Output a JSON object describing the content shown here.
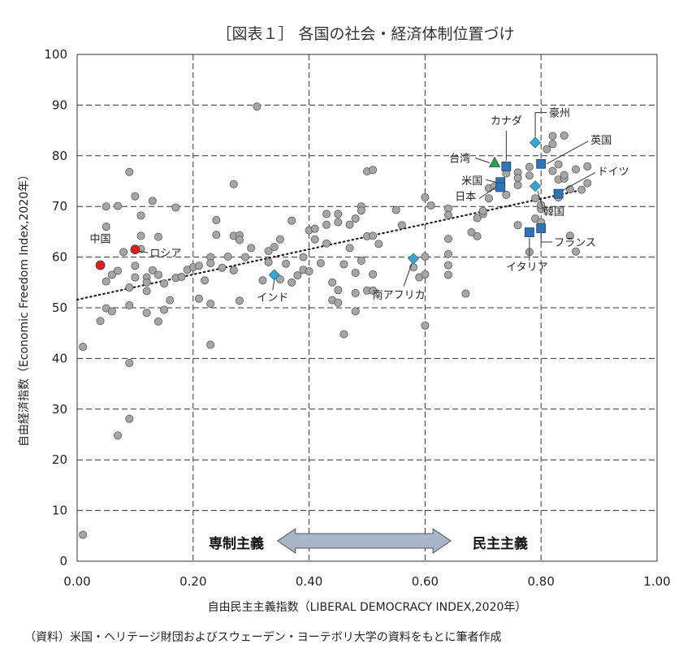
{
  "chart_data": {
    "type": "scatter",
    "title": "［図表１］ 各国の社会・経済体制位置づけ",
    "xlabel": "自由民主主義指数（LIBERAL DEMOCRACY INDEX,2020年）",
    "ylabel": "自由経済指数（Economic Freedom Index,2020年）",
    "xlim": [
      0,
      1
    ],
    "ylim": [
      0,
      100
    ],
    "xticks": [
      "0.00",
      "0.20",
      "0.40",
      "0.60",
      "0.80",
      "1.00"
    ],
    "yticks": [
      "0",
      "10",
      "20",
      "30",
      "40",
      "50",
      "60",
      "70",
      "80",
      "90",
      "100"
    ],
    "grid": true,
    "trendline": {
      "style": "dotted",
      "from": [
        0.0,
        51.6
      ],
      "to": [
        0.88,
        73.5
      ]
    },
    "regime_arrow": {
      "left": "専制主義",
      "right": "民主主義",
      "span": [
        0.34,
        0.65
      ],
      "y": 4
    },
    "source": "（資料）米国・ヘリテージ財団およびスウェーデン・ヨーテボリ大学の資料をもとに筆者作成",
    "colors": {
      "others": "#a6a6a6",
      "red": "#e11d1d",
      "blue": "#2e75b6",
      "teal": "#3aa6d0",
      "green": "#2e9a55"
    },
    "highlighted": [
      {
        "name": "中国",
        "x": 0.04,
        "y": 58.4,
        "marker": "circle",
        "color": "#e11d1d",
        "label": "中国"
      },
      {
        "name": "ロシア",
        "x": 0.1,
        "y": 61.5,
        "marker": "circle",
        "color": "#e11d1d",
        "label": "ロシア"
      },
      {
        "name": "インド",
        "x": 0.34,
        "y": 56.5,
        "marker": "diamond",
        "color": "#3aa6d0",
        "label": "インド"
      },
      {
        "name": "南アフリカ",
        "x": 0.58,
        "y": 59.7,
        "marker": "diamond",
        "color": "#3aa6d0",
        "label": "南アフリカ"
      },
      {
        "name": "台湾",
        "x": 0.72,
        "y": 78.6,
        "marker": "triangle",
        "color": "#2e9a55",
        "label": "台湾"
      },
      {
        "name": "カナダ",
        "x": 0.74,
        "y": 77.9,
        "marker": "square",
        "color": "#2e75b6",
        "label": "カナダ"
      },
      {
        "name": "米国",
        "x": 0.73,
        "y": 74.8,
        "marker": "square",
        "color": "#2e75b6",
        "label": "米国"
      },
      {
        "name": "日本",
        "x": 0.73,
        "y": 73.8,
        "marker": "square",
        "color": "#2e75b6",
        "label": "日本"
      },
      {
        "name": "豪州",
        "x": 0.79,
        "y": 82.6,
        "marker": "diamond",
        "color": "#3aa6d0",
        "label": "豪州"
      },
      {
        "name": "英国",
        "x": 0.8,
        "y": 78.4,
        "marker": "square",
        "color": "#2e75b6",
        "label": "英国"
      },
      {
        "name": "ドイツ",
        "x": 0.83,
        "y": 72.5,
        "marker": "square",
        "color": "#2e75b6",
        "label": "ドイツ"
      },
      {
        "name": "韓国",
        "x": 0.79,
        "y": 74.0,
        "marker": "diamond",
        "color": "#3aa6d0",
        "label": "韓国"
      },
      {
        "name": "フランス",
        "x": 0.8,
        "y": 65.7,
        "marker": "square",
        "color": "#2e75b6",
        "label": "フランス"
      },
      {
        "name": "イタリア",
        "x": 0.78,
        "y": 64.9,
        "marker": "square",
        "color": "#2e75b6",
        "label": "イタリア"
      }
    ],
    "others": [
      [
        0.01,
        42.3
      ],
      [
        0.01,
        5.2
      ],
      [
        0.04,
        47.4
      ],
      [
        0.05,
        70.0
      ],
      [
        0.05,
        66.0
      ],
      [
        0.05,
        55.2
      ],
      [
        0.05,
        49.9
      ],
      [
        0.06,
        56.5
      ],
      [
        0.06,
        49.3
      ],
      [
        0.07,
        70.1
      ],
      [
        0.07,
        57.3
      ],
      [
        0.07,
        24.8
      ],
      [
        0.08,
        61.0
      ],
      [
        0.09,
        76.8
      ],
      [
        0.09,
        54.0
      ],
      [
        0.09,
        50.5
      ],
      [
        0.09,
        39.1
      ],
      [
        0.09,
        28.1
      ],
      [
        0.1,
        72.0
      ],
      [
        0.1,
        58.3
      ],
      [
        0.1,
        56.0
      ],
      [
        0.11,
        68.2
      ],
      [
        0.11,
        64.2
      ],
      [
        0.11,
        61.6
      ],
      [
        0.12,
        56.0
      ],
      [
        0.12,
        55.0
      ],
      [
        0.12,
        53.3
      ],
      [
        0.12,
        49.0
      ],
      [
        0.13,
        71.1
      ],
      [
        0.13,
        57.4
      ],
      [
        0.14,
        64.0
      ],
      [
        0.14,
        56.5
      ],
      [
        0.14,
        47.3
      ],
      [
        0.15,
        54.8
      ],
      [
        0.15,
        49.6
      ],
      [
        0.16,
        51.5
      ],
      [
        0.17,
        69.8
      ],
      [
        0.17,
        55.9
      ],
      [
        0.18,
        56.1
      ],
      [
        0.19,
        57.5
      ],
      [
        0.2,
        58.0
      ],
      [
        0.21,
        58.3
      ],
      [
        0.21,
        51.8
      ],
      [
        0.22,
        55.4
      ],
      [
        0.23,
        60.0
      ],
      [
        0.23,
        58.8
      ],
      [
        0.23,
        50.8
      ],
      [
        0.23,
        42.7
      ],
      [
        0.24,
        67.3
      ],
      [
        0.24,
        64.4
      ],
      [
        0.25,
        57.9
      ],
      [
        0.26,
        60.1
      ],
      [
        0.27,
        74.4
      ],
      [
        0.27,
        64.2
      ],
      [
        0.27,
        57.4
      ],
      [
        0.28,
        64.3
      ],
      [
        0.28,
        63.4
      ],
      [
        0.28,
        51.4
      ],
      [
        0.29,
        60.0
      ],
      [
        0.3,
        61.8
      ],
      [
        0.31,
        89.7
      ],
      [
        0.32,
        55.4
      ],
      [
        0.33,
        61.2
      ],
      [
        0.33,
        59.0
      ],
      [
        0.34,
        62.0
      ],
      [
        0.35,
        63.5
      ],
      [
        0.35,
        55.6
      ],
      [
        0.36,
        58.7
      ],
      [
        0.37,
        67.2
      ],
      [
        0.37,
        55.0
      ],
      [
        0.38,
        56.4
      ],
      [
        0.39,
        60.0
      ],
      [
        0.39,
        57.5
      ],
      [
        0.4,
        65.3
      ],
      [
        0.4,
        57.2
      ],
      [
        0.41,
        65.6
      ],
      [
        0.41,
        63.5
      ],
      [
        0.42,
        58.8
      ],
      [
        0.43,
        68.5
      ],
      [
        0.43,
        66.4
      ],
      [
        0.43,
        62.7
      ],
      [
        0.44,
        55.0
      ],
      [
        0.44,
        51.5
      ],
      [
        0.45,
        68.5
      ],
      [
        0.45,
        66.9
      ],
      [
        0.45,
        53.5
      ],
      [
        0.45,
        51.0
      ],
      [
        0.46,
        58.6
      ],
      [
        0.46,
        44.8
      ],
      [
        0.47,
        66.4
      ],
      [
        0.47,
        61.8
      ],
      [
        0.48,
        67.6
      ],
      [
        0.48,
        56.9
      ],
      [
        0.48,
        52.9
      ],
      [
        0.48,
        49.3
      ],
      [
        0.49,
        70.0
      ],
      [
        0.49,
        69.2
      ],
      [
        0.49,
        59.3
      ],
      [
        0.5,
        76.9
      ],
      [
        0.5,
        64.1
      ],
      [
        0.5,
        53.4
      ],
      [
        0.51,
        77.2
      ],
      [
        0.51,
        64.2
      ],
      [
        0.51,
        56.6
      ],
      [
        0.51,
        53.4
      ],
      [
        0.52,
        62.6
      ],
      [
        0.55,
        69.3
      ],
      [
        0.56,
        66.3
      ],
      [
        0.58,
        58.0
      ],
      [
        0.59,
        56.0
      ],
      [
        0.6,
        71.8
      ],
      [
        0.6,
        46.5
      ],
      [
        0.6,
        60.1
      ],
      [
        0.6,
        56.6
      ],
      [
        0.61,
        70.2
      ],
      [
        0.64,
        69.6
      ],
      [
        0.64,
        68.3
      ],
      [
        0.64,
        60.6
      ],
      [
        0.64,
        58.4
      ],
      [
        0.64,
        56.5
      ],
      [
        0.64,
        63.6
      ],
      [
        0.67,
        52.8
      ],
      [
        0.68,
        64.9
      ],
      [
        0.69,
        67.7
      ],
      [
        0.69,
        64.1
      ],
      [
        0.7,
        68.5
      ],
      [
        0.7,
        69.1
      ],
      [
        0.71,
        73.6
      ],
      [
        0.71,
        71.6
      ],
      [
        0.72,
        74.0
      ],
      [
        0.74,
        76.5
      ],
      [
        0.74,
        72.3
      ],
      [
        0.76,
        76.7
      ],
      [
        0.76,
        75.6
      ],
      [
        0.76,
        74.2
      ],
      [
        0.76,
        66.3
      ],
      [
        0.78,
        77.8
      ],
      [
        0.78,
        76.1
      ],
      [
        0.78,
        61.0
      ],
      [
        0.79,
        71.6
      ],
      [
        0.79,
        67.6
      ],
      [
        0.8,
        69.5
      ],
      [
        0.8,
        70.3
      ],
      [
        0.8,
        66.9
      ],
      [
        0.81,
        81.3
      ],
      [
        0.82,
        83.9
      ],
      [
        0.82,
        77.0
      ],
      [
        0.82,
        82.3
      ],
      [
        0.83,
        78.3
      ],
      [
        0.83,
        75.3
      ],
      [
        0.83,
        71.8
      ],
      [
        0.84,
        75.5
      ],
      [
        0.84,
        76.2
      ],
      [
        0.85,
        64.2
      ],
      [
        0.85,
        73.4
      ],
      [
        0.86,
        77.3
      ],
      [
        0.87,
        73.3
      ],
      [
        0.88,
        74.6
      ],
      [
        0.88,
        77.9
      ],
      [
        0.86,
        61.1
      ],
      [
        0.84,
        84.0
      ]
    ]
  }
}
